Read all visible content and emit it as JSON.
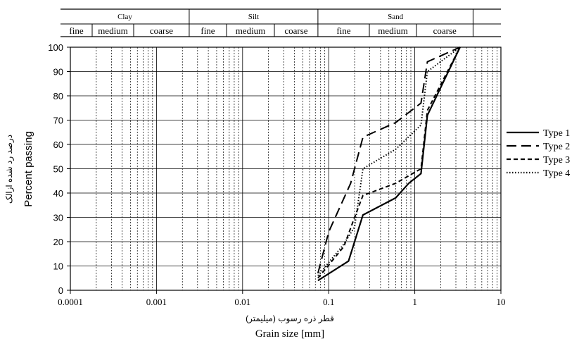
{
  "chart_data": {
    "type": "line",
    "title": "",
    "xlabel": "Grain size [mm]",
    "xlabel_fa": "قطر ذره رسوب (میلیمتر)",
    "ylabel": "Percent passing",
    "ylabel_fa": "درصد رد شده ازالک",
    "xscale": "log",
    "xlim": [
      0.0001,
      10
    ],
    "ylim": [
      0,
      100
    ],
    "x_ticks": [
      0.0001,
      0.001,
      0.01,
      0.1,
      1,
      10
    ],
    "x_tick_labels": [
      "0.0001",
      "0.001",
      "0.01",
      "0.1",
      "1",
      "10"
    ],
    "y_ticks": [
      0,
      10,
      20,
      30,
      40,
      50,
      60,
      70,
      80,
      90,
      100
    ],
    "y_tick_labels": [
      "0",
      "10",
      "20",
      "30",
      "40",
      "50",
      "60",
      "70",
      "80",
      "90",
      "100"
    ],
    "grid": true,
    "legend_position": "right",
    "classification": [
      {
        "name": "Clay",
        "subs": [
          "fine",
          "medium",
          "coarse"
        ]
      },
      {
        "name": "Silt",
        "subs": [
          "fine",
          "medium",
          "coarse"
        ]
      },
      {
        "name": "Sand",
        "subs": [
          "fine",
          "medium",
          "coarse"
        ]
      }
    ],
    "series": [
      {
        "name": "Type 1",
        "dash": "solid",
        "points": [
          [
            0.075,
            4
          ],
          [
            0.17,
            12
          ],
          [
            0.25,
            31
          ],
          [
            0.6,
            38
          ],
          [
            0.85,
            44
          ],
          [
            1.18,
            48
          ],
          [
            1.4,
            72
          ],
          [
            3.35,
            100
          ]
        ]
      },
      {
        "name": "Type 2",
        "dash": "dashed",
        "points": [
          [
            0.075,
            7
          ],
          [
            0.1,
            24
          ],
          [
            0.18,
            44
          ],
          [
            0.25,
            63
          ],
          [
            0.6,
            69
          ],
          [
            1.18,
            77
          ],
          [
            1.4,
            94
          ],
          [
            3.35,
            100
          ]
        ]
      },
      {
        "name": "Type 3",
        "dash": "short-dashed",
        "points": [
          [
            0.075,
            5
          ],
          [
            0.15,
            18
          ],
          [
            0.2,
            30
          ],
          [
            0.25,
            39
          ],
          [
            0.6,
            44
          ],
          [
            1.18,
            50
          ],
          [
            1.4,
            74
          ],
          [
            3.35,
            100
          ]
        ]
      },
      {
        "name": "Type 4",
        "dash": "dotted",
        "points": [
          [
            0.075,
            6
          ],
          [
            0.15,
            19
          ],
          [
            0.2,
            26
          ],
          [
            0.25,
            50
          ],
          [
            0.6,
            58
          ],
          [
            1.18,
            68
          ],
          [
            1.4,
            90
          ],
          [
            3.35,
            100
          ]
        ]
      }
    ]
  }
}
